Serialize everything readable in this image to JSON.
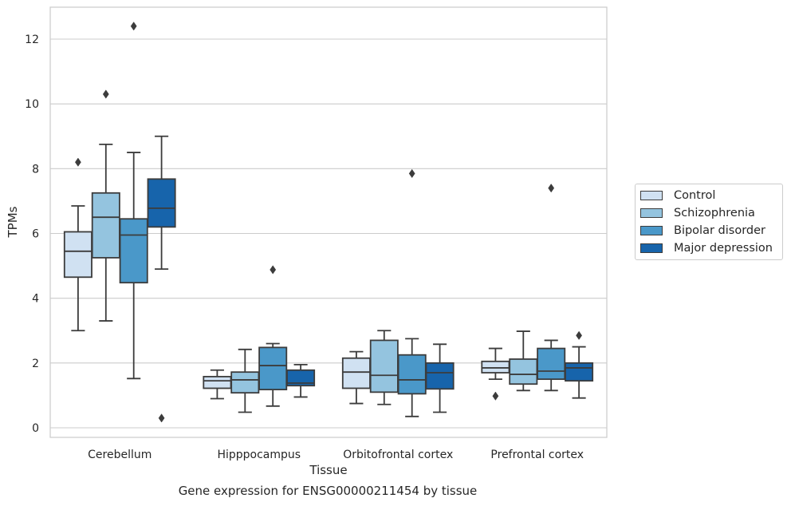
{
  "chart_data": {
    "type": "box",
    "xlabel": "Tissue",
    "ylabel": "TPMs",
    "ylim": [
      -0.3,
      13
    ],
    "yticks": [
      0,
      2,
      4,
      6,
      8,
      10,
      12
    ],
    "grid": "horizontal",
    "legend_position": "center-right",
    "categories": [
      "Cerebellum",
      "Hipppocampus",
      "Orbitofrontal cortex",
      "Prefrontal cortex"
    ],
    "series": [
      {
        "name": "Control",
        "color": "#d0e1f2",
        "boxes": [
          {
            "whislo": 3.0,
            "q1": 4.65,
            "med": 5.45,
            "q3": 6.05,
            "whishi": 6.85,
            "fliers": [
              8.2
            ]
          },
          {
            "whislo": 0.9,
            "q1": 1.22,
            "med": 1.45,
            "q3": 1.58,
            "whishi": 1.78,
            "fliers": []
          },
          {
            "whislo": 0.75,
            "q1": 1.22,
            "med": 1.72,
            "q3": 2.15,
            "whishi": 2.35,
            "fliers": []
          },
          {
            "whislo": 1.5,
            "q1": 1.7,
            "med": 1.85,
            "q3": 2.05,
            "whishi": 2.45,
            "fliers": [
              0.98
            ]
          }
        ]
      },
      {
        "name": "Schizophrenia",
        "color": "#94c4df",
        "boxes": [
          {
            "whislo": 3.3,
            "q1": 5.25,
            "med": 6.5,
            "q3": 7.25,
            "whishi": 8.75,
            "fliers": [
              10.3
            ]
          },
          {
            "whislo": 0.48,
            "q1": 1.08,
            "med": 1.48,
            "q3": 1.72,
            "whishi": 2.42,
            "fliers": []
          },
          {
            "whislo": 0.72,
            "q1": 1.1,
            "med": 1.62,
            "q3": 2.7,
            "whishi": 3.0,
            "fliers": []
          },
          {
            "whislo": 1.15,
            "q1": 1.35,
            "med": 1.65,
            "q3": 2.12,
            "whishi": 2.98,
            "fliers": []
          }
        ]
      },
      {
        "name": "Bipolar disorder",
        "color": "#4a98c9",
        "boxes": [
          {
            "whislo": 1.52,
            "q1": 4.48,
            "med": 5.95,
            "q3": 6.45,
            "whishi": 8.5,
            "fliers": [
              12.4
            ]
          },
          {
            "whislo": 0.67,
            "q1": 1.18,
            "med": 1.92,
            "q3": 2.48,
            "whishi": 2.6,
            "fliers": [
              4.88
            ]
          },
          {
            "whislo": 0.35,
            "q1": 1.05,
            "med": 1.48,
            "q3": 2.25,
            "whishi": 2.75,
            "fliers": [
              7.85
            ]
          },
          {
            "whislo": 1.15,
            "q1": 1.5,
            "med": 1.75,
            "q3": 2.45,
            "whishi": 2.7,
            "fliers": [
              7.4
            ]
          }
        ]
      },
      {
        "name": "Major depression",
        "color": "#1764ab",
        "boxes": [
          {
            "whislo": 4.9,
            "q1": 6.2,
            "med": 6.78,
            "q3": 7.68,
            "whishi": 9.0,
            "fliers": [
              0.3
            ]
          },
          {
            "whislo": 0.95,
            "q1": 1.3,
            "med": 1.38,
            "q3": 1.78,
            "whishi": 1.95,
            "fliers": []
          },
          {
            "whislo": 0.48,
            "q1": 1.2,
            "med": 1.7,
            "q3": 2.0,
            "whishi": 2.58,
            "fliers": []
          },
          {
            "whislo": 0.92,
            "q1": 1.45,
            "med": 1.85,
            "q3": 2.0,
            "whishi": 2.5,
            "fliers": [
              2.85
            ]
          }
        ]
      }
    ]
  },
  "caption": "Gene expression for ENSG00000211454 by tissue"
}
